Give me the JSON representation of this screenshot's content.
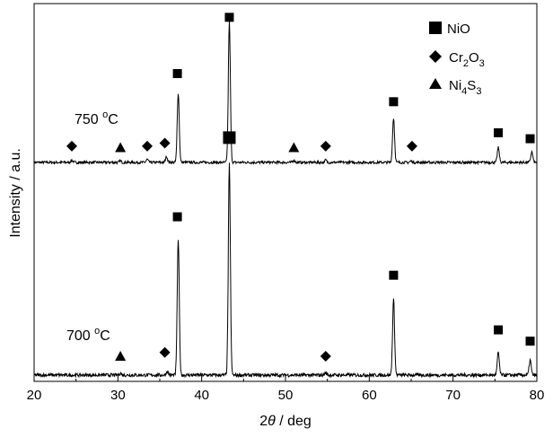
{
  "chart_data": {
    "type": "line",
    "xlabel_prefix": "2",
    "xlabel_symbol": "θ",
    "xlabel_suffix": " / deg",
    "ylabel": "Intensity / a.u.",
    "xlim": [
      20,
      80
    ],
    "x_ticks": [
      20,
      30,
      40,
      50,
      60,
      70,
      80
    ],
    "y_ticks_shown": false,
    "grid": false,
    "legend_position": "top-right",
    "legend": [
      {
        "marker": "square",
        "label": "NiO"
      },
      {
        "marker": "diamond",
        "label_main": "Cr",
        "sub1": "2",
        "mid": "O",
        "sub2": "3"
      },
      {
        "marker": "triangle",
        "label_main": "Ni",
        "sub1": "4",
        "mid": "S",
        "sub2": "3"
      }
    ],
    "series": [
      {
        "name": "750 °C",
        "label_num": "750 ",
        "label_deg": "o",
        "label_unit": "C",
        "baseline": 0,
        "peaks": [
          {
            "x": 24.5,
            "h": 0.015
          },
          {
            "x": 30.3,
            "h": 0.01
          },
          {
            "x": 33.5,
            "h": 0.02
          },
          {
            "x": 35.8,
            "h": 0.04
          },
          {
            "x": 37.2,
            "h": 0.47
          },
          {
            "x": 43.3,
            "h": 0.95
          },
          {
            "x": 51.0,
            "h": 0.015
          },
          {
            "x": 54.8,
            "h": 0.015
          },
          {
            "x": 62.9,
            "h": 0.3
          },
          {
            "x": 65.0,
            "h": 0.01
          },
          {
            "x": 75.4,
            "h": 0.1
          },
          {
            "x": 79.4,
            "h": 0.07
          }
        ],
        "markers": [
          {
            "x": 24.5,
            "type": "diamond",
            "level": 0.11
          },
          {
            "x": 30.3,
            "type": "triangle",
            "level": 0.1
          },
          {
            "x": 33.5,
            "type": "diamond",
            "level": 0.11
          },
          {
            "x": 35.6,
            "type": "diamond",
            "level": 0.13
          },
          {
            "x": 37.1,
            "type": "square",
            "level": 0.6
          },
          {
            "x": 43.3,
            "type": "square",
            "level": 0.98
          },
          {
            "x": 51.0,
            "type": "triangle",
            "level": 0.1
          },
          {
            "x": 54.8,
            "type": "diamond",
            "level": 0.11
          },
          {
            "x": 62.9,
            "type": "square",
            "level": 0.41
          },
          {
            "x": 65.1,
            "type": "diamond",
            "level": 0.11
          },
          {
            "x": 75.4,
            "type": "square",
            "level": 0.2
          },
          {
            "x": 79.2,
            "type": "square",
            "level": 0.16
          }
        ]
      },
      {
        "name": "700 °C",
        "label_num": "700 ",
        "label_deg": "o",
        "label_unit": "C",
        "baseline": 0,
        "peaks": [
          {
            "x": 30.3,
            "h": 0.01
          },
          {
            "x": 35.9,
            "h": 0.02
          },
          {
            "x": 37.2,
            "h": 0.72
          },
          {
            "x": 43.3,
            "h": 1.12
          },
          {
            "x": 54.8,
            "h": 0.012
          },
          {
            "x": 62.9,
            "h": 0.4
          },
          {
            "x": 75.4,
            "h": 0.12
          },
          {
            "x": 79.2,
            "h": 0.08
          }
        ],
        "markers": [
          {
            "x": 30.3,
            "type": "triangle",
            "level": 0.1
          },
          {
            "x": 35.6,
            "type": "diamond",
            "level": 0.12
          },
          {
            "x": 37.1,
            "type": "square",
            "level": 0.84
          },
          {
            "x": 43.3,
            "type": "square-large",
            "level": 1.26
          },
          {
            "x": 54.8,
            "type": "diamond",
            "level": 0.1
          },
          {
            "x": 62.9,
            "type": "square",
            "level": 0.53
          },
          {
            "x": 75.4,
            "type": "square",
            "level": 0.24
          },
          {
            "x": 79.2,
            "type": "square",
            "level": 0.18
          }
        ]
      }
    ]
  }
}
